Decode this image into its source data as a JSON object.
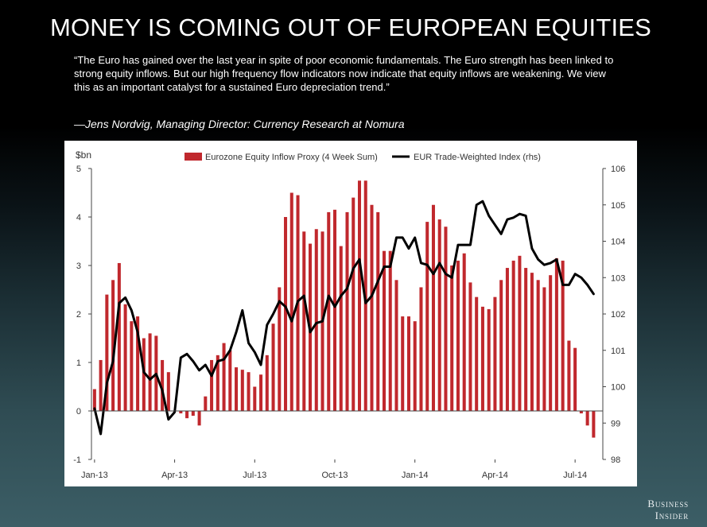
{
  "slide": {
    "title": "MONEY IS COMING OUT OF EUROPEAN EQUITIES",
    "quote": "“The Euro has gained over the last year in spite of poor economic fundamentals. The Euro strength has been linked to strong equity inflows.  But our high frequency flow indicators now indicate that equity inflows are weakening. We view this as an important catalyst for a sustained Euro depreciation trend.”",
    "attribution": "—Jens Nordvig, Managing Director: Currency Research at Nomura",
    "brand_line1": "Business",
    "brand_line2": "Insider"
  },
  "colors": {
    "bar": "#c0282d",
    "line": "#000000",
    "axis": "#444444",
    "text": "#333333"
  },
  "chart_data": {
    "type": "bar",
    "title": "",
    "ylabel": "$bn",
    "ylim": [
      -1,
      5
    ],
    "yticks": [
      "-1",
      "0",
      "1",
      "2",
      "3",
      "4",
      "5"
    ],
    "y2lim": [
      98,
      106
    ],
    "y2ticks": [
      "98",
      "99",
      "100",
      "101",
      "102",
      "103",
      "104",
      "105",
      "106"
    ],
    "grid": false,
    "legend_position": "top",
    "x_weeks": 83,
    "xlabels": [
      {
        "label": "Jan-13",
        "week": 0
      },
      {
        "label": "Apr-13",
        "week": 13
      },
      {
        "label": "Jul-13",
        "week": 26
      },
      {
        "label": "Oct-13",
        "week": 39
      },
      {
        "label": "Jan-14",
        "week": 52
      },
      {
        "label": "Apr-14",
        "week": 65
      },
      {
        "label": "Jul-14",
        "week": 78
      }
    ],
    "series": [
      {
        "name": "Eurozone Equity Inflow Proxy (4 Week Sum)",
        "kind": "bar",
        "axis": "left",
        "values": [
          0.45,
          1.05,
          2.4,
          2.7,
          3.05,
          2.2,
          1.85,
          1.95,
          1.5,
          1.6,
          1.55,
          1.05,
          0.8,
          0.0,
          -0.05,
          -0.15,
          -0.1,
          -0.3,
          0.3,
          1.05,
          1.15,
          1.4,
          1.25,
          0.9,
          0.85,
          0.8,
          0.5,
          0.75,
          1.15,
          1.8,
          2.55,
          4.0,
          4.5,
          4.45,
          3.7,
          3.45,
          3.75,
          3.7,
          4.1,
          4.15,
          3.4,
          4.1,
          4.4,
          4.75,
          4.75,
          4.25,
          4.1,
          3.3,
          3.3,
          2.7,
          1.95,
          1.95,
          1.85,
          2.55,
          3.9,
          4.25,
          3.95,
          3.8,
          3.0,
          3.1,
          3.25,
          2.65,
          2.35,
          2.15,
          2.1,
          2.35,
          2.7,
          2.95,
          3.1,
          3.2,
          2.95,
          2.85,
          2.7,
          2.55,
          2.8,
          3.15,
          3.1,
          1.45,
          1.3,
          -0.05,
          -0.3,
          -0.55
        ]
      },
      {
        "name": "EUR Trade-Weighted Index (rhs)",
        "kind": "line",
        "axis": "right",
        "x": [
          0,
          1,
          2,
          3,
          4,
          5,
          6,
          7,
          8,
          9,
          10,
          11,
          12,
          13,
          14,
          15,
          16,
          17,
          18,
          19,
          20,
          21,
          22,
          23,
          24,
          25,
          26,
          27,
          28,
          29,
          30,
          31,
          32,
          33,
          34,
          35,
          36,
          37,
          38,
          39,
          40,
          41,
          42,
          43,
          44,
          45,
          46,
          47,
          48,
          49,
          50,
          51,
          52,
          53,
          54,
          55,
          56,
          57,
          58,
          59,
          60,
          61,
          62,
          63,
          64,
          65,
          66,
          67,
          68,
          69,
          70,
          71,
          72,
          73,
          74,
          75,
          76,
          77,
          78,
          79,
          80,
          81
        ],
        "values": [
          99.4,
          98.7,
          100.1,
          100.7,
          102.3,
          102.45,
          102.1,
          101.5,
          100.4,
          100.2,
          100.35,
          99.9,
          99.1,
          99.3,
          100.8,
          100.9,
          100.7,
          100.45,
          100.6,
          100.3,
          100.7,
          100.75,
          101.0,
          101.5,
          102.1,
          101.2,
          100.95,
          100.6,
          101.7,
          102.0,
          102.35,
          102.2,
          101.8,
          102.35,
          102.5,
          101.5,
          101.75,
          101.8,
          102.5,
          102.2,
          102.5,
          102.7,
          103.25,
          103.5,
          102.3,
          102.5,
          102.9,
          103.3,
          103.3,
          104.1,
          104.1,
          103.8,
          104.1,
          103.4,
          103.35,
          103.1,
          103.4,
          103.1,
          103.0,
          103.9,
          103.9,
          103.9,
          105.0,
          105.1,
          104.7,
          104.45,
          104.2,
          104.6,
          104.65,
          104.75,
          104.7,
          103.8,
          103.5,
          103.35,
          103.4,
          103.5,
          102.8,
          102.8,
          103.1,
          103.0,
          102.8,
          102.55
        ]
      }
    ]
  }
}
